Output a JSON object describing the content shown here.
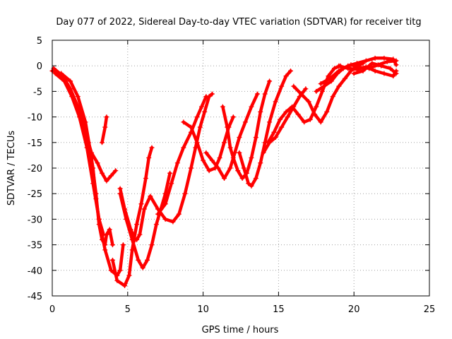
{
  "chart_data": {
    "type": "scatter",
    "title": "Day 077 of 2022, Sidereal Day-to-day VTEC variation (SDTVAR) for receiver titg",
    "xlabel": "GPS time / hours",
    "ylabel": "SDTVAR / TECUs",
    "xlim": [
      0,
      25
    ],
    "ylim": [
      -45,
      5
    ],
    "xticks": [
      0,
      5,
      10,
      15,
      20,
      25
    ],
    "yticks": [
      5,
      0,
      -5,
      -10,
      -15,
      -20,
      -25,
      -30,
      -35,
      -40,
      -45
    ],
    "grid": true,
    "legend": "none",
    "marker": "plus",
    "color": "#ff0000",
    "series": [
      {
        "points": [
          [
            0,
            -1
          ],
          [
            0.6,
            -1.5
          ],
          [
            1.2,
            -3
          ],
          [
            1.7,
            -6
          ],
          [
            2.2,
            -11
          ],
          [
            2.6,
            -18
          ],
          [
            2.9,
            -25
          ],
          [
            3.1,
            -31
          ],
          [
            3.3,
            -34
          ],
          [
            3.5,
            -35
          ],
          [
            3.6,
            -33
          ],
          [
            3.8,
            -32
          ],
          [
            4.0,
            -35
          ]
        ]
      },
      {
        "points": [
          [
            0.2,
            -1.5
          ],
          [
            0.8,
            -3
          ],
          [
            1.3,
            -6
          ],
          [
            1.8,
            -10
          ],
          [
            2.3,
            -16
          ],
          [
            2.7,
            -23
          ],
          [
            3.1,
            -30
          ],
          [
            3.5,
            -36
          ],
          [
            3.9,
            -40
          ],
          [
            4.3,
            -41
          ],
          [
            4.5,
            -40
          ],
          [
            4.7,
            -35
          ]
        ]
      },
      {
        "points": [
          [
            0.1,
            -0.5
          ],
          [
            0.7,
            -2
          ],
          [
            1.2,
            -4.5
          ],
          [
            1.7,
            -8
          ],
          [
            2.2,
            -13
          ],
          [
            2.6,
            -17
          ],
          [
            3.0,
            -19
          ],
          [
            3.3,
            -21
          ],
          [
            3.6,
            -22.5
          ],
          [
            3.9,
            -21.5
          ],
          [
            4.2,
            -20.5
          ]
        ]
      },
      {
        "points": [
          [
            1.8,
            -9
          ],
          [
            2.1,
            -12
          ],
          [
            2.4,
            -15
          ],
          [
            2.7,
            -20
          ],
          [
            2.9,
            -26
          ],
          [
            3.1,
            -30
          ],
          [
            3.4,
            -33
          ]
        ]
      },
      {
        "points": [
          [
            3.3,
            -15
          ],
          [
            3.5,
            -12
          ],
          [
            3.6,
            -10
          ]
        ]
      },
      {
        "points": [
          [
            4.0,
            -38
          ],
          [
            4.3,
            -42
          ],
          [
            4.8,
            -43
          ],
          [
            5.1,
            -41
          ],
          [
            5.3,
            -36
          ],
          [
            5.6,
            -31
          ],
          [
            5.9,
            -27
          ],
          [
            6.2,
            -22
          ],
          [
            6.4,
            -18
          ],
          [
            6.6,
            -16
          ]
        ]
      },
      {
        "points": [
          [
            4.5,
            -25
          ],
          [
            4.9,
            -30
          ],
          [
            5.3,
            -34
          ],
          [
            5.7,
            -38
          ],
          [
            6.0,
            -39.5
          ],
          [
            6.3,
            -38
          ],
          [
            6.6,
            -35
          ],
          [
            6.9,
            -31
          ],
          [
            7.2,
            -28
          ],
          [
            7.5,
            -25
          ],
          [
            7.8,
            -21
          ]
        ]
      },
      {
        "points": [
          [
            4.5,
            -24
          ],
          [
            4.8,
            -28
          ],
          [
            5.2,
            -32
          ],
          [
            5.5,
            -34
          ]
        ]
      },
      {
        "points": [
          [
            5.6,
            -34
          ],
          [
            5.8,
            -33
          ],
          [
            6.1,
            -28
          ],
          [
            6.5,
            -25.5
          ],
          [
            7.0,
            -28
          ],
          [
            7.5,
            -30
          ],
          [
            8.0,
            -30.5
          ],
          [
            8.4,
            -29
          ],
          [
            8.8,
            -25
          ],
          [
            9.2,
            -20
          ],
          [
            9.5,
            -16
          ],
          [
            9.8,
            -12
          ],
          [
            10.1,
            -9
          ],
          [
            10.4,
            -6
          ],
          [
            10.6,
            -5.5
          ]
        ]
      },
      {
        "points": [
          [
            7.0,
            -29
          ],
          [
            7.5,
            -27
          ],
          [
            7.9,
            -23
          ],
          [
            8.3,
            -19
          ],
          [
            8.7,
            -16
          ],
          [
            9.2,
            -13
          ],
          [
            9.6,
            -10
          ],
          [
            9.9,
            -8
          ],
          [
            10.2,
            -6
          ]
        ]
      },
      {
        "points": [
          [
            8.7,
            -11
          ],
          [
            9.2,
            -12
          ],
          [
            9.6,
            -15
          ],
          [
            10.0,
            -18.5
          ],
          [
            10.4,
            -20.5
          ],
          [
            10.8,
            -20
          ],
          [
            11.1,
            -18
          ],
          [
            11.4,
            -15
          ],
          [
            11.7,
            -12
          ],
          [
            12.0,
            -10
          ]
        ]
      },
      {
        "points": [
          [
            10.2,
            -17
          ],
          [
            10.6,
            -18.5
          ],
          [
            11.0,
            -20
          ],
          [
            11.4,
            -22
          ],
          [
            11.8,
            -20
          ],
          [
            12.1,
            -17
          ],
          [
            12.4,
            -14
          ],
          [
            12.8,
            -11
          ],
          [
            13.2,
            -8
          ],
          [
            13.6,
            -5.5
          ]
        ]
      },
      {
        "points": [
          [
            11.3,
            -8
          ],
          [
            11.6,
            -12
          ],
          [
            11.8,
            -16
          ],
          [
            12.0,
            -18
          ],
          [
            12.3,
            -20.5
          ],
          [
            12.6,
            -22
          ],
          [
            12.9,
            -21
          ],
          [
            13.2,
            -18
          ],
          [
            13.5,
            -14
          ],
          [
            13.8,
            -9
          ],
          [
            14.1,
            -5.5
          ],
          [
            14.4,
            -3
          ]
        ]
      },
      {
        "points": [
          [
            12.4,
            -17
          ],
          [
            12.7,
            -20
          ],
          [
            13.0,
            -23
          ],
          [
            13.2,
            -23.5
          ],
          [
            13.5,
            -22
          ],
          [
            13.8,
            -19
          ],
          [
            14.1,
            -15
          ],
          [
            14.4,
            -11
          ],
          [
            14.8,
            -7
          ],
          [
            15.2,
            -4
          ],
          [
            15.5,
            -2
          ],
          [
            15.8,
            -1
          ]
        ]
      },
      {
        "points": [
          [
            14.3,
            -15
          ],
          [
            14.7,
            -13
          ],
          [
            15.1,
            -10.5
          ],
          [
            15.5,
            -9
          ],
          [
            15.9,
            -8
          ],
          [
            16.3,
            -9.5
          ],
          [
            16.7,
            -11
          ],
          [
            17.1,
            -10.5
          ],
          [
            17.5,
            -8
          ],
          [
            17.9,
            -5
          ],
          [
            18.3,
            -2
          ],
          [
            18.7,
            -0.5
          ],
          [
            19.1,
            0
          ]
        ]
      },
      {
        "points": [
          [
            14.0,
            -17
          ],
          [
            14.4,
            -15
          ],
          [
            14.8,
            -14
          ],
          [
            15.2,
            -12
          ],
          [
            15.6,
            -10
          ],
          [
            16.0,
            -8
          ],
          [
            16.4,
            -6
          ],
          [
            16.8,
            -4.5
          ]
        ]
      },
      {
        "points": [
          [
            16.0,
            -4
          ],
          [
            16.5,
            -5.5
          ],
          [
            17.0,
            -7
          ],
          [
            17.4,
            -9.5
          ],
          [
            17.8,
            -11
          ],
          [
            18.2,
            -9
          ],
          [
            18.6,
            -6
          ],
          [
            19.0,
            -4
          ],
          [
            19.4,
            -2.5
          ],
          [
            19.8,
            -1
          ],
          [
            20.2,
            0
          ],
          [
            20.6,
            0.5
          ]
        ]
      },
      {
        "points": [
          [
            17.5,
            -5
          ],
          [
            18.0,
            -4
          ],
          [
            18.5,
            -3
          ],
          [
            18.9,
            -1.5
          ],
          [
            19.3,
            -0.5
          ],
          [
            19.8,
            0.2
          ],
          [
            20.4,
            -0.3
          ],
          [
            21.0,
            -0.5
          ],
          [
            21.6,
            0.2
          ],
          [
            22.2,
            0.8
          ],
          [
            22.8,
            1
          ]
        ]
      },
      {
        "points": [
          [
            17.8,
            -3.5
          ],
          [
            18.4,
            -2.5
          ],
          [
            19.0,
            -1
          ],
          [
            19.6,
            0
          ],
          [
            20.2,
            0.5
          ],
          [
            20.8,
            1
          ],
          [
            21.4,
            1.5
          ],
          [
            22.0,
            1.5
          ],
          [
            22.6,
            1.3
          ],
          [
            22.8,
            0.2
          ]
        ]
      },
      {
        "points": [
          [
            19.0,
            0
          ],
          [
            19.6,
            -0.5
          ],
          [
            20.2,
            -0.7
          ],
          [
            20.8,
            -0.2
          ],
          [
            21.4,
            -1
          ],
          [
            22.0,
            -1.5
          ],
          [
            22.6,
            -2
          ],
          [
            22.8,
            -1
          ]
        ]
      },
      {
        "points": [
          [
            20.0,
            -1.5
          ],
          [
            20.6,
            -1
          ],
          [
            21.2,
            0.5
          ],
          [
            21.8,
            0
          ],
          [
            22.4,
            -0.5
          ],
          [
            22.8,
            -1.5
          ]
        ]
      }
    ]
  }
}
